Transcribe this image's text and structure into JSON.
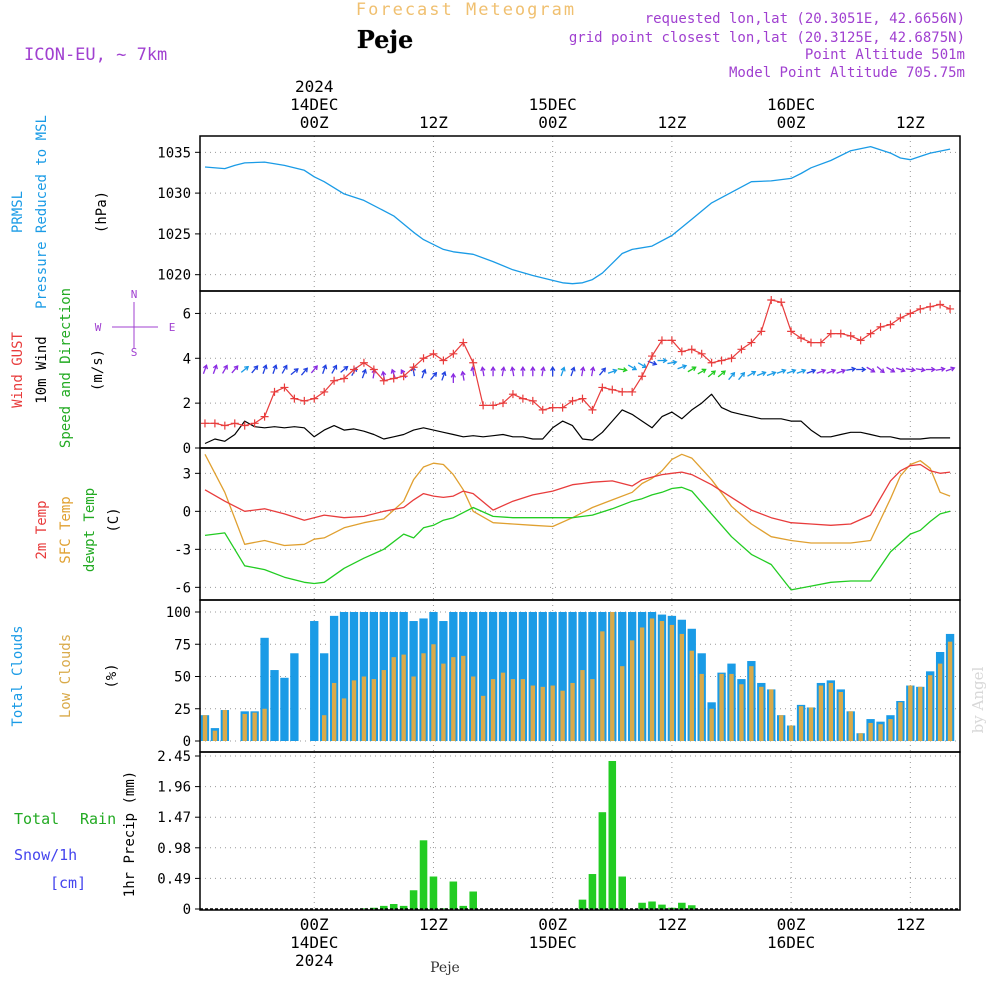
{
  "header": {
    "title": "Forecast Meteogram",
    "location": "Peje",
    "model": "ICON-EU, ~ 7km",
    "requested": "requested lon,lat (20.3051E, 42.6656N)",
    "gridpoint": "grid point closest lon,lat (20.3125E, 42.6875N)",
    "point_alt": "Point Altitude 501m",
    "model_alt": "Model Point Altitude 705.75m",
    "footer": "Peje",
    "watermark": "by Angel"
  },
  "time_axis": {
    "top": [
      {
        "h": 0,
        "lines": [
          "2024",
          "14DEC",
          "00Z"
        ]
      },
      {
        "h": 12,
        "lines": [
          "12Z"
        ]
      },
      {
        "h": 24,
        "lines": [
          "15DEC",
          "00Z"
        ]
      },
      {
        "h": 36,
        "lines": [
          "12Z"
        ]
      },
      {
        "h": 48,
        "lines": [
          "16DEC",
          "00Z"
        ]
      },
      {
        "h": 60,
        "lines": [
          "12Z"
        ]
      }
    ],
    "bottom": [
      {
        "h": 0,
        "lines": [
          "00Z",
          "14DEC",
          "2024"
        ]
      },
      {
        "h": 12,
        "lines": [
          "12Z"
        ]
      },
      {
        "h": 24,
        "lines": [
          "00Z",
          "15DEC"
        ]
      },
      {
        "h": 36,
        "lines": [
          "12Z"
        ]
      },
      {
        "h": 48,
        "lines": [
          "00Z",
          "16DEC"
        ]
      },
      {
        "h": 60,
        "lines": [
          "12Z"
        ]
      }
    ],
    "range_hours": [
      -11.5,
      65
    ]
  },
  "panels": {
    "pressure": {
      "label1": "PRMSL",
      "label2": "Pressure Reduced to MSL",
      "unit": "(hPa)",
      "ticks": [
        "1020",
        "1025",
        "1030",
        "1035"
      ]
    },
    "wind": {
      "label_gust": "Wind GUST",
      "label_wind": "10m Wind",
      "label_dir": "Speed and Direction",
      "unit": "(m/s)",
      "ticks": [
        "0",
        "2",
        "4",
        "6"
      ],
      "compass_n": "N",
      "compass_s": "S",
      "compass_w": "W",
      "compass_e": "E"
    },
    "temp": {
      "label_2m": "2m Temp",
      "label_sfc": "SFC Temp",
      "label_dew": "dewpt Temp",
      "unit": "(C)",
      "ticks": [
        "-6",
        "-3",
        "0",
        "3"
      ]
    },
    "clouds": {
      "label_total": "Total Clouds",
      "label_low": "Low Clouds",
      "unit": "(%)",
      "ticks": [
        "0",
        "25",
        "50",
        "75",
        "100"
      ]
    },
    "precip": {
      "label_total": "Total",
      "label_rain": "Rain",
      "label_snow": "Snow/1h",
      "label_cm": "[cm]",
      "ylabel": "1hr Precip (mm)",
      "ticks": [
        "0",
        "0.49",
        "0.98",
        "1.47",
        "1.96",
        "2.45"
      ]
    }
  },
  "colors": {
    "pressure": "#1a9be6",
    "gust": "#e83c3c",
    "wind": "#000000",
    "t2m": "#e83c3c",
    "tsfc": "#e0a030",
    "dew": "#22cc22",
    "total_cloud": "#1a9be6",
    "low_cloud": "#d9aa4a",
    "rain": "#22cc22",
    "snow": "#4444ee",
    "title": "#f0c070",
    "info": "#a040d0"
  },
  "chart_data": {
    "type": "line",
    "x_unit": "hours from 2024-12-14 00Z",
    "pressure": {
      "ylim": [
        1018,
        1037
      ],
      "x": [
        -11,
        -9,
        -8,
        -7,
        -5,
        -3,
        -1,
        0,
        1,
        3,
        5,
        8,
        10,
        11,
        13,
        14,
        16,
        18,
        20,
        22,
        24,
        25,
        26,
        27,
        28,
        29,
        30,
        31,
        32,
        34,
        36,
        38,
        40,
        42,
        44,
        46,
        48,
        49,
        50,
        52,
        54,
        56,
        58,
        59,
        60,
        61,
        62,
        64
      ],
      "values": [
        1033.2,
        1033.0,
        1033.4,
        1033.7,
        1033.8,
        1033.4,
        1032.8,
        1032.0,
        1031.4,
        1029.9,
        1029.1,
        1027.2,
        1025.2,
        1024.3,
        1023.1,
        1022.8,
        1022.5,
        1021.6,
        1020.6,
        1019.9,
        1019.3,
        1019.0,
        1018.9,
        1019.0,
        1019.4,
        1020.2,
        1021.4,
        1022.6,
        1023.1,
        1023.5,
        1024.8,
        1026.8,
        1028.8,
        1030.1,
        1031.4,
        1031.5,
        1031.8,
        1032.4,
        1033.1,
        1034.0,
        1035.2,
        1035.7,
        1034.9,
        1034.3,
        1034.1,
        1034.5,
        1034.9,
        1035.4
      ]
    },
    "wind": {
      "ylim": [
        0,
        7
      ],
      "x": [
        -11,
        -10,
        -9,
        -8,
        -7,
        -6,
        -5,
        -4,
        -3,
        -2,
        -1,
        0,
        1,
        2,
        3,
        4,
        5,
        6,
        7,
        8,
        9,
        10,
        11,
        12,
        13,
        14,
        15,
        16,
        17,
        18,
        19,
        20,
        21,
        22,
        23,
        24,
        25,
        26,
        27,
        28,
        29,
        30,
        31,
        32,
        33,
        34,
        35,
        36,
        37,
        38,
        39,
        40,
        41,
        42,
        43,
        44,
        45,
        46,
        47,
        48,
        49,
        50,
        51,
        52,
        53,
        54,
        55,
        56,
        57,
        58,
        59,
        60,
        61,
        62,
        63,
        64
      ],
      "gust": [
        1.1,
        1.1,
        1.0,
        1.1,
        1.0,
        1.1,
        1.4,
        2.5,
        2.7,
        2.2,
        2.1,
        2.2,
        2.5,
        3.0,
        3.1,
        3.5,
        3.8,
        3.5,
        3.0,
        3.1,
        3.2,
        3.6,
        4.0,
        4.2,
        3.9,
        4.2,
        4.7,
        3.8,
        1.9,
        1.9,
        2.0,
        2.4,
        2.2,
        2.1,
        1.7,
        1.8,
        1.8,
        2.1,
        2.2,
        1.7,
        2.7,
        2.6,
        2.5,
        2.5,
        3.2,
        4.1,
        4.8,
        4.8,
        4.3,
        4.4,
        4.2,
        3.8,
        3.9,
        4.0,
        4.4,
        4.7,
        5.2,
        6.6,
        6.5,
        5.2,
        4.9,
        4.7,
        4.7,
        5.1,
        5.1,
        5.0,
        4.8,
        5.1,
        5.4,
        5.5,
        5.8,
        6.0,
        6.2,
        6.3,
        6.4,
        6.2
      ],
      "speed": [
        0.2,
        0.4,
        0.3,
        0.6,
        1.2,
        0.95,
        0.9,
        0.95,
        0.9,
        0.95,
        0.9,
        0.5,
        0.8,
        1.0,
        0.8,
        0.85,
        0.75,
        0.6,
        0.4,
        0.5,
        0.6,
        0.8,
        0.9,
        0.8,
        0.7,
        0.6,
        0.5,
        0.55,
        0.5,
        0.55,
        0.6,
        0.5,
        0.5,
        0.4,
        0.4,
        0.9,
        1.2,
        1.0,
        0.4,
        0.35,
        0.7,
        1.2,
        1.7,
        1.5,
        1.2,
        0.9,
        1.4,
        1.6,
        1.3,
        1.7,
        2.0,
        2.4,
        1.8,
        1.6,
        1.5,
        1.4,
        1.3,
        1.3,
        1.3,
        1.2,
        1.2,
        0.8,
        0.5,
        0.5,
        0.6,
        0.7,
        0.7,
        0.6,
        0.5,
        0.5,
        0.4,
        0.4,
        0.4,
        0.45,
        0.45,
        0.45
      ],
      "arrow_dir_deg": [
        200,
        200,
        210,
        220,
        230,
        220,
        200,
        200,
        210,
        230,
        220,
        220,
        200,
        210,
        230,
        210,
        200,
        190,
        170,
        160,
        150,
        170,
        200,
        220,
        200,
        180,
        170,
        170,
        170,
        180,
        190,
        170,
        180,
        180,
        190,
        180,
        200,
        200,
        190,
        190,
        220,
        250,
        280,
        300,
        300,
        290,
        270,
        260,
        250,
        240,
        240,
        230,
        230,
        220,
        220,
        240,
        250,
        250,
        250,
        250,
        250,
        250,
        250,
        250,
        250,
        260,
        270,
        300,
        310,
        300,
        290,
        280,
        280,
        270,
        260,
        250
      ],
      "arrow_speed": [
        3.5,
        3.5,
        3.5,
        3.5,
        3.5,
        3.5,
        3.5,
        3.5,
        3.5,
        3.4,
        3.4,
        3.5,
        3.5,
        3.5,
        3.5,
        3.4,
        3.3,
        3.3,
        3.2,
        3.3,
        3.3,
        3.4,
        3.3,
        3.2,
        3.2,
        3.1,
        3.2,
        3.4,
        3.4,
        3.4,
        3.4,
        3.4,
        3.4,
        3.4,
        3.4,
        3.4,
        3.4,
        3.4,
        3.4,
        3.4,
        3.4,
        3.4,
        3.5,
        3.6,
        3.7,
        3.8,
        3.9,
        3.8,
        3.6,
        3.5,
        3.4,
        3.3,
        3.3,
        3.2,
        3.2,
        3.3,
        3.3,
        3.3,
        3.4,
        3.4,
        3.4,
        3.4,
        3.4,
        3.4,
        3.4,
        3.5,
        3.5,
        3.5,
        3.5,
        3.5,
        3.5,
        3.5,
        3.5,
        3.5,
        3.5,
        3.5
      ]
    },
    "temp": {
      "ylim": [
        -7,
        5
      ],
      "x": [
        -11,
        -9,
        -7,
        -5,
        -3,
        -1,
        0,
        1,
        3,
        5,
        7,
        9,
        10,
        11,
        12,
        13,
        14,
        15,
        16,
        18,
        20,
        22,
        24,
        26,
        27,
        28,
        30,
        32,
        33,
        34,
        35,
        36,
        37,
        38,
        40,
        42,
        44,
        46,
        48,
        50,
        52,
        54,
        56,
        58,
        59,
        60,
        61,
        62,
        63,
        64
      ],
      "t2m": [
        1.7,
        0.8,
        0,
        0.2,
        -0.2,
        -0.7,
        -0.5,
        -0.3,
        -0.5,
        -0.4,
        0.0,
        0.3,
        0.9,
        1.4,
        1.2,
        1.1,
        1.2,
        1.6,
        1.4,
        0.1,
        0.8,
        1.3,
        1.6,
        2.1,
        2.2,
        2.3,
        2.4,
        2.0,
        2.5,
        2.7,
        2.9,
        3.0,
        3.1,
        2.9,
        2.1,
        1.1,
        0.1,
        -0.5,
        -0.9,
        -1.0,
        -1.1,
        -1.0,
        -0.3,
        2.4,
        3.2,
        3.6,
        3.7,
        3.2,
        3.0,
        3.1
      ],
      "tsfc": [
        4.5,
        1.5,
        -2.6,
        -2.3,
        -2.7,
        -2.6,
        -2.2,
        -2.1,
        -1.3,
        -0.9,
        -0.6,
        0.8,
        2.5,
        3.5,
        3.8,
        3.7,
        2.9,
        1.7,
        0.0,
        -0.9,
        -1.0,
        -1.1,
        -1.2,
        -0.5,
        -0.1,
        0.3,
        0.9,
        1.5,
        2.2,
        2.6,
        3.2,
        4.1,
        4.5,
        4.2,
        2.5,
        0.4,
        -1.0,
        -2.0,
        -2.3,
        -2.5,
        -2.5,
        -2.5,
        -2.3,
        1.0,
        2.8,
        3.7,
        4.0,
        3.4,
        1.5,
        1.2
      ],
      "dew": [
        -1.9,
        -1.7,
        -4.3,
        -4.6,
        -5.2,
        -5.6,
        -5.7,
        -5.6,
        -4.5,
        -3.7,
        -3.0,
        -1.8,
        -2.1,
        -1.3,
        -1.1,
        -0.7,
        -0.5,
        -0.1,
        0.3,
        -0.4,
        -0.5,
        -0.5,
        -0.5,
        -0.5,
        -0.4,
        -0.3,
        0.2,
        0.8,
        1.0,
        1.3,
        1.5,
        1.8,
        1.9,
        1.6,
        -0.2,
        -2.0,
        -3.4,
        -4.2,
        -6.2,
        -5.9,
        -5.6,
        -5.5,
        -5.5,
        -3.2,
        -2.5,
        -1.8,
        -1.5,
        -0.8,
        -0.2,
        0.0
      ]
    },
    "clouds": {
      "ylim": [
        0,
        100
      ],
      "x": [
        -11,
        -10,
        -9,
        -8,
        -7,
        -6,
        -5,
        -4,
        -3,
        -2,
        -1,
        0,
        1,
        2,
        3,
        4,
        5,
        6,
        7,
        8,
        9,
        10,
        11,
        12,
        13,
        14,
        15,
        16,
        17,
        18,
        19,
        20,
        21,
        22,
        23,
        24,
        25,
        26,
        27,
        28,
        29,
        30,
        31,
        32,
        33,
        34,
        35,
        36,
        37,
        38,
        39,
        40,
        41,
        42,
        43,
        44,
        45,
        46,
        47,
        48,
        49,
        50,
        51,
        52,
        53,
        54,
        55,
        56,
        57,
        58,
        59,
        60,
        61,
        62,
        63,
        64
      ],
      "total": [
        20,
        10,
        24,
        0,
        23,
        23,
        80,
        55,
        49,
        68,
        0,
        93,
        68,
        97,
        100,
        100,
        100,
        100,
        100,
        100,
        100,
        93,
        95,
        100,
        93,
        100,
        100,
        100,
        100,
        100,
        100,
        100,
        100,
        100,
        100,
        100,
        100,
        100,
        100,
        100,
        100,
        100,
        100,
        100,
        100,
        100,
        98,
        97,
        94,
        87,
        68,
        30,
        53,
        60,
        48,
        62,
        45,
        40,
        20,
        12,
        28,
        26,
        45,
        47,
        40,
        23,
        6,
        17,
        15,
        20,
        31,
        43,
        42,
        54,
        69,
        83
      ],
      "low": [
        20,
        8,
        24,
        0,
        21,
        22,
        25,
        0,
        0,
        0,
        0,
        0,
        20,
        45,
        33,
        47,
        50,
        48,
        55,
        65,
        67,
        50,
        68,
        75,
        60,
        65,
        66,
        50,
        35,
        48,
        53,
        48,
        48,
        43,
        42,
        43,
        39,
        45,
        55,
        48,
        85,
        100,
        58,
        78,
        88,
        95,
        93,
        90,
        83,
        70,
        52,
        25,
        52,
        52,
        44,
        58,
        42,
        40,
        20,
        12,
        27,
        26,
        43,
        45,
        38,
        23,
        6,
        14,
        13,
        17,
        30,
        43,
        42,
        51,
        60,
        77
      ]
    },
    "precip": {
      "ylim": [
        0,
        2.45
      ],
      "x": [
        5,
        6,
        7,
        8,
        9,
        10,
        11,
        12,
        13,
        14,
        15,
        16,
        17,
        18,
        19,
        20,
        21,
        22,
        23,
        24,
        25,
        26,
        27,
        28,
        29,
        30,
        31,
        32,
        33,
        34,
        35,
        36,
        37,
        38
      ],
      "rain": [
        0.01,
        0.02,
        0.05,
        0.08,
        0.05,
        0.3,
        1.1,
        0.52,
        0.01,
        0.44,
        0.05,
        0.28,
        0.0,
        0.0,
        0.0,
        0.0,
        0.0,
        0.0,
        0.0,
        0.0,
        0.0,
        0.0,
        0.15,
        0.56,
        1.55,
        2.37,
        0.52,
        0.0,
        0.1,
        0.12,
        0.07,
        0.02,
        0.1,
        0.06
      ],
      "snow": [
        0,
        0,
        0,
        0,
        0,
        0,
        0,
        0,
        0,
        0,
        0,
        0,
        0,
        0,
        0,
        0,
        0,
        0,
        0,
        0,
        0,
        0,
        0,
        0,
        0,
        0,
        0,
        0,
        0,
        0,
        0,
        0,
        0,
        0
      ]
    }
  }
}
